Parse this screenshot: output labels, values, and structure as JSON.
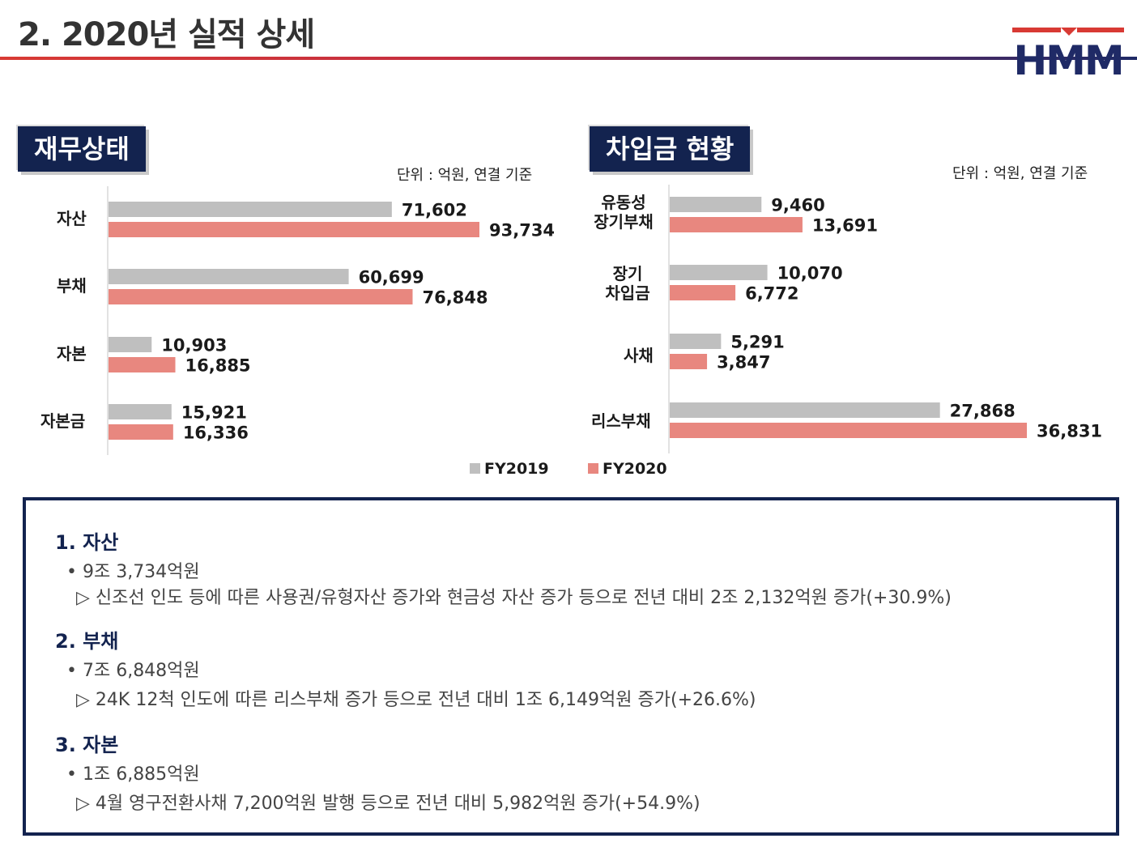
{
  "page_title": "2. 2020년 실적 상세",
  "logo_text": "HMM",
  "colors": {
    "navy": "#13234f",
    "fy2019": "#bfbfbf",
    "fy2020": "#e8877f"
  },
  "legend": {
    "fy2019": "FY2019",
    "fy2020": "FY2020"
  },
  "financial": {
    "label": "재무상태",
    "unit": "단위 : 억원, 연결 기준",
    "categories": [
      "자산",
      "부채",
      "자본",
      "자본금"
    ]
  },
  "borrowing": {
    "label": "차입금 현황",
    "unit": "단위 : 억원, 연결 기준",
    "categories": [
      [
        "유동성",
        "장기부채"
      ],
      [
        "장기",
        "차입금"
      ],
      [
        "사채"
      ],
      [
        "리스부채"
      ]
    ]
  },
  "chart_data": [
    {
      "type": "bar",
      "orientation": "horizontal",
      "title": "재무상태",
      "categories": [
        "자산",
        "부채",
        "자본",
        "자본금"
      ],
      "series": [
        {
          "name": "FY2019",
          "values": [
            71602,
            60699,
            10903,
            15921
          ],
          "labels": [
            "71,602",
            "60,699",
            "10,903",
            "15,921"
          ]
        },
        {
          "name": "FY2020",
          "values": [
            93734,
            76848,
            16885,
            16336
          ],
          "labels": [
            "93,734",
            "76,848",
            "16,885",
            "16,336"
          ]
        }
      ],
      "xlim": [
        0,
        100000
      ],
      "unit": "억원"
    },
    {
      "type": "bar",
      "orientation": "horizontal",
      "title": "차입금 현황",
      "categories": [
        "유동성 장기부채",
        "장기 차입금",
        "사채",
        "리스부채"
      ],
      "series": [
        {
          "name": "FY2019",
          "values": [
            9460,
            10070,
            5291,
            27868
          ],
          "labels": [
            "9,460",
            "10,070",
            "5,291",
            "27,868"
          ]
        },
        {
          "name": "FY2020",
          "values": [
            13691,
            6772,
            3847,
            36831
          ],
          "labels": [
            "13,691",
            "6,772",
            "3,847",
            "36,831"
          ]
        }
      ],
      "xlim": [
        0,
        40000
      ],
      "unit": "억원"
    }
  ],
  "summary": [
    {
      "heading": "1. 자산",
      "bullet": "• 9조 3,734억원",
      "detail": "▷ 신조선 인도 등에 따른 사용권/유형자산 증가와 현금성 자산 증가 등으로 전년 대비 2조 2,132억원 증가(+30.9%)"
    },
    {
      "heading": "2. 부채",
      "bullet": "• 7조 6,848억원",
      "detail": "▷ 24K 12척 인도에 따른 리스부채 증가 등으로 전년 대비 1조 6,149억원 증가(+26.6%)"
    },
    {
      "heading": "3. 자본",
      "bullet": "• 1조 6,885억원",
      "detail": "▷ 4월 영구전환사채 7,200억원 발행 등으로 전년 대비 5,982억원 증가(+54.9%)"
    }
  ]
}
